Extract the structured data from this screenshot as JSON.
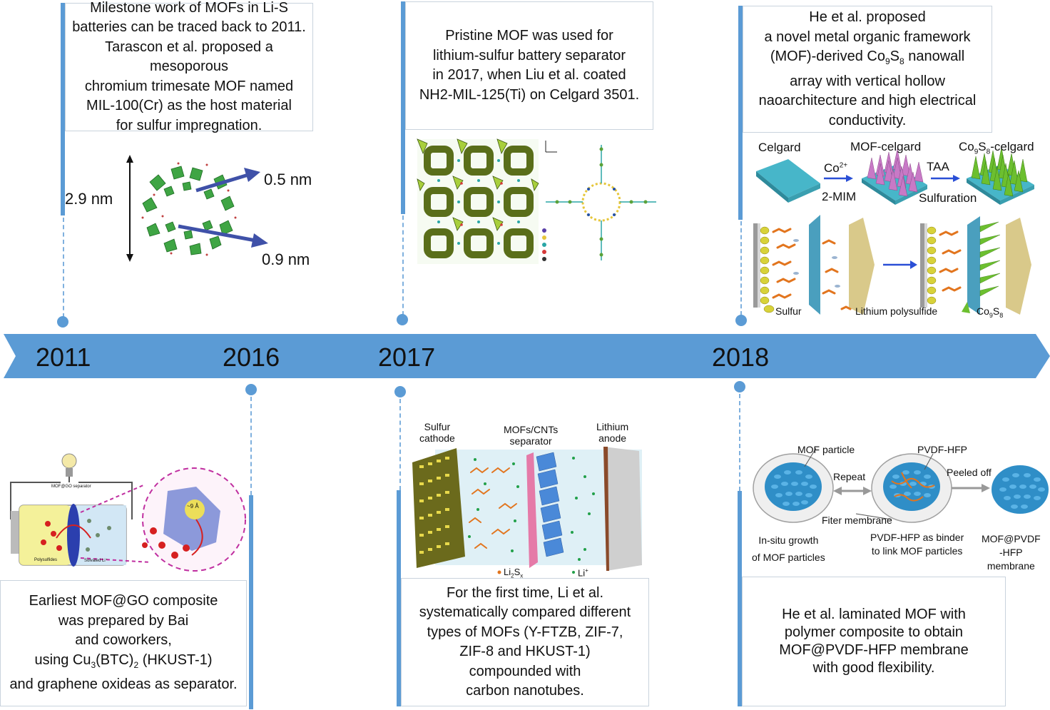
{
  "timeline": {
    "years": [
      "2011",
      "2016",
      "2017",
      "2018"
    ],
    "arrow_color": "#5b9bd5"
  },
  "events": {
    "e2011_top": "Milestone work of MOFs in Li-S\nbatteries can be traced back to 2011.\nTarascon et al. proposed a mesoporous\nchromium trimesate MOF named\nMIL-100(Cr) as the host material\nfor sulfur impregnation.",
    "e2017_top": "Pristine MOF was used for\nlithium-sulfur battery separator\nin 2017, when Liu et al. coated\nNH2-MIL-125(Ti) on Celgard 3501.",
    "e2018_top": {
      "l1": "He et al. proposed",
      "l2": "a novel metal organic framework",
      "l3_pre": "(MOF)-derived Co",
      "l3_sub1": "9",
      "l3_mid": "S",
      "l3_sub2": "8",
      "l3_post": " nanowall",
      "l4": "array with vertical hollow",
      "l5": "naoarchitecture and high electrical",
      "l6": "conductivity."
    },
    "e2016_bottom": {
      "l1": "Earliest MOF@GO composite",
      "l2": "was prepared by Bai",
      "l3": "and coworkers,",
      "l4_pre": "using Cu",
      "l4_sub1": "3",
      "l4_mid": "(BTC)",
      "l4_sub2": "2",
      "l4_post": " (HKUST-1)",
      "l5": "and graphene oxideas as separator."
    },
    "e2017_bottom": "For the first time, Li et al.\nsystematically compared different\ntypes of MOFs (Y-FTZB, ZIF-7,\nZIF-8 and HKUST-1)\ncompounded with\ncarbon nanotubes.",
    "e2018_bottom": "He et al. laminated MOF with\npolymer composite to obtain\nMOF@PVDF-HFP membrane\nwith good flexibility."
  },
  "fig2011": {
    "height_label": "2.9 nm",
    "pore1": "0.5 nm",
    "pore2": "0.9 nm"
  },
  "fig2018_top": {
    "celgard": "Celgard",
    "mof_celgard": "MOF-celgard",
    "co_pre": "Co",
    "co_sub1": "9",
    "co_s": "S",
    "co_sub2": "8",
    "co_post": "-celgard",
    "co2": "Co",
    "co2_sup": "2+",
    "mim": "2-MIM",
    "taa": "TAA",
    "sulfuration": "Sulfuration",
    "sulfur": "Sulfur",
    "lips": "Lithium polysulfide",
    "legend_co": "Co",
    "legend_sub1": "9",
    "legend_s": "S",
    "legend_sub2": "8"
  },
  "fig2016": {
    "separator_label": "MOF@GO separator",
    "polysulfides": "Polysulfides",
    "solvated": "Solvated Li⁺",
    "pore": "~9 Å"
  },
  "fig2017_bottom": {
    "sulfur_cathode": "Sulfur\ncathode",
    "separator": "MOFs/CNTs\nseparator",
    "lithium_anode": "Lithium\nanode",
    "li2sx_pre": "Li",
    "li2sx_sub": "2",
    "li2sx_s": "S",
    "li2sx_subx": "x",
    "li_plus": "Li",
    "li_sup": "+"
  },
  "fig2018_bottom": {
    "mof_particle": "MOF particle",
    "pvdf_hfp": "PVDF-HFP",
    "repeat": "Repeat",
    "peeled_off": "Peeled off",
    "filter_membrane": "Fiter membrane",
    "insitu": "In-situ growth\nof MOF particles",
    "binder": "PVDF-HFP as binder\nto link MOF particles",
    "membrane": "MOF@PVDF\n-HFP\nmembrane"
  }
}
